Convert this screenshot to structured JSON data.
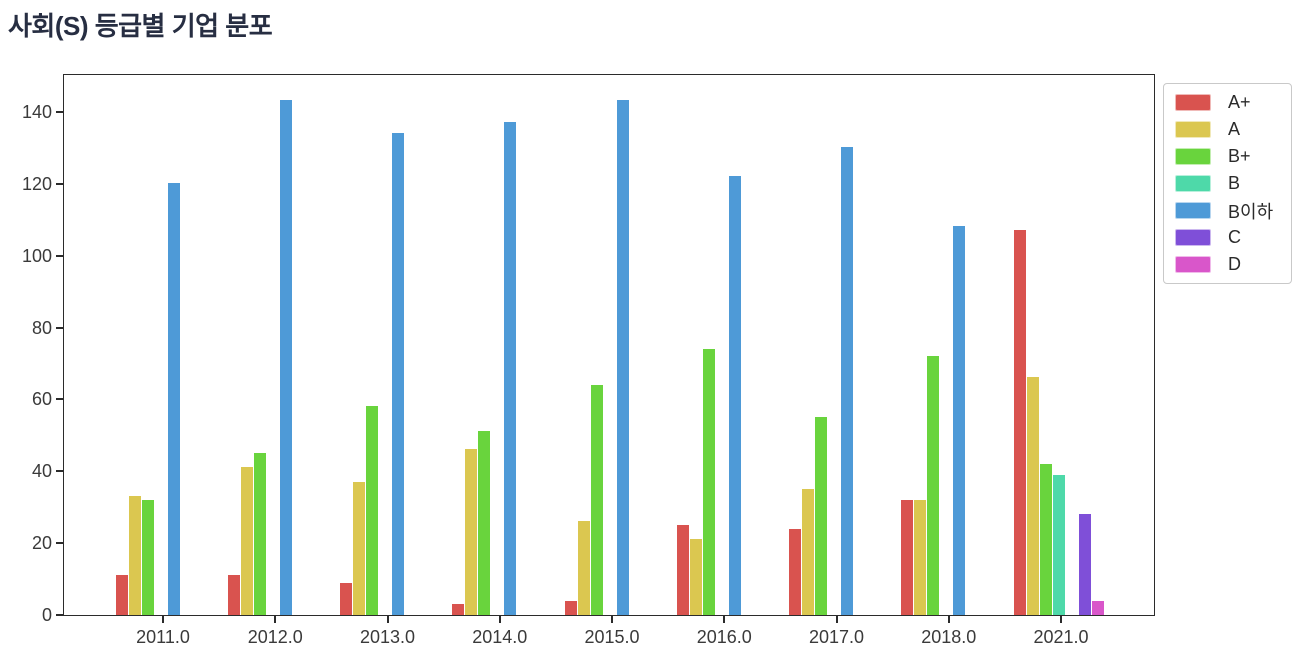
{
  "page": {
    "title": "사회(S) 등급별 기업 분포"
  },
  "chart_data": {
    "type": "bar",
    "title": "사회(S) 등급별 기업 분포",
    "xlabel": "",
    "ylabel": "",
    "categories": [
      "2011.0",
      "2012.0",
      "2013.0",
      "2014.0",
      "2015.0",
      "2016.0",
      "2017.0",
      "2018.0",
      "2021.0"
    ],
    "series": [
      {
        "name": "A+",
        "color": "#d9534f",
        "values": [
          11,
          11,
          9,
          3,
          4,
          25,
          24,
          32,
          107
        ]
      },
      {
        "name": "A",
        "color": "#dbc750",
        "values": [
          33,
          41,
          37,
          46,
          26,
          21,
          35,
          32,
          66
        ]
      },
      {
        "name": "B+",
        "color": "#69d43d",
        "values": [
          32,
          45,
          58,
          51,
          64,
          74,
          55,
          72,
          42
        ]
      },
      {
        "name": "B",
        "color": "#4ed9a9",
        "values": [
          null,
          null,
          null,
          null,
          null,
          null,
          null,
          null,
          39
        ]
      },
      {
        "name": "B이하",
        "color": "#4e9ad7",
        "values": [
          120,
          143,
          134,
          137,
          143,
          122,
          130,
          108,
          null
        ]
      },
      {
        "name": "C",
        "color": "#7f4fd8",
        "values": [
          null,
          null,
          null,
          null,
          null,
          null,
          null,
          null,
          28
        ]
      },
      {
        "name": "D",
        "color": "#d956ca",
        "values": [
          null,
          null,
          null,
          null,
          null,
          null,
          null,
          null,
          4
        ]
      }
    ],
    "ylim": [
      0,
      150
    ],
    "yticks": [
      0,
      20,
      40,
      60,
      80,
      100,
      120,
      140
    ],
    "grid": false,
    "legend_position": "outside-top-right",
    "plot_background": "#ffffff",
    "spine_color": "#2b2b2b",
    "title_color": "#272e42"
  }
}
